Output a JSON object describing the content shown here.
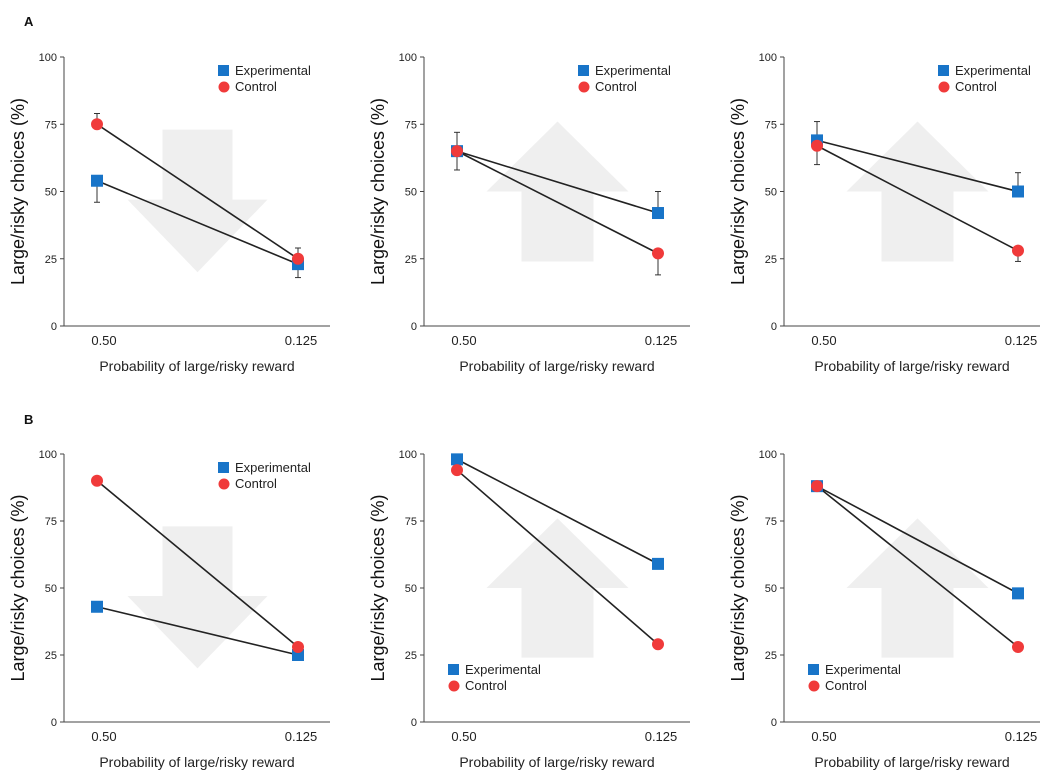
{
  "figure": {
    "rows": [
      {
        "label": "A"
      },
      {
        "label": "B"
      }
    ]
  },
  "colors": {
    "experimental": "#1874c8",
    "control": "#f03a3a",
    "line": "#222222",
    "arrow": "#efefef",
    "axis": "#444444"
  },
  "chart_data": [
    {
      "type": "line",
      "panel": "A-1",
      "arrow": "down",
      "legend_position": "top-right",
      "categories": [
        "0.50",
        "0.125"
      ],
      "xlabel": "Probability of large/risky reward",
      "ylabel": "Large/risky choices (%)",
      "ylim": [
        0,
        100
      ],
      "yticks": [
        "0",
        "25",
        "50",
        "75",
        "100"
      ],
      "series": [
        {
          "name": "Experimental",
          "marker": "square",
          "values": [
            54,
            23
          ],
          "err": [
            8,
            6
          ]
        },
        {
          "name": "Control",
          "marker": "circle",
          "values": [
            75,
            25
          ],
          "err": [
            4,
            7
          ]
        }
      ]
    },
    {
      "type": "line",
      "panel": "A-2",
      "arrow": "up",
      "legend_position": "top-right",
      "categories": [
        "0.50",
        "0.125"
      ],
      "xlabel": "Probability of large/risky reward",
      "ylabel": "Large/risky choices (%)",
      "ylim": [
        0,
        100
      ],
      "yticks": [
        "0",
        "25",
        "50",
        "75",
        "100"
      ],
      "series": [
        {
          "name": "Experimental",
          "marker": "square",
          "values": [
            65,
            42
          ],
          "err": [
            7,
            8
          ]
        },
        {
          "name": "Control",
          "marker": "circle",
          "values": [
            65,
            27
          ],
          "err": [
            7,
            8
          ]
        }
      ]
    },
    {
      "type": "line",
      "panel": "A-3",
      "arrow": "up",
      "legend_position": "top-right",
      "categories": [
        "0.50",
        "0.125"
      ],
      "xlabel": "Probability of large/risky reward",
      "ylabel": "Large/risky choices (%)",
      "ylim": [
        0,
        100
      ],
      "yticks": [
        "0",
        "25",
        "50",
        "75",
        "100"
      ],
      "series": [
        {
          "name": "Experimental",
          "marker": "square",
          "values": [
            69,
            50
          ],
          "err": [
            9,
            7
          ]
        },
        {
          "name": "Control",
          "marker": "circle",
          "values": [
            67,
            28
          ],
          "err": [
            9,
            4
          ]
        }
      ]
    },
    {
      "type": "line",
      "panel": "B-1",
      "arrow": "down",
      "legend_position": "top-right",
      "categories": [
        "0.50",
        "0.125"
      ],
      "xlabel": "Probability of large/risky reward",
      "ylabel": "Large/risky choices (%)",
      "ylim": [
        0,
        100
      ],
      "yticks": [
        "0",
        "25",
        "50",
        "75",
        "100"
      ],
      "series": [
        {
          "name": "Experimental",
          "marker": "square",
          "values": [
            43,
            25
          ],
          "err": [
            0,
            0
          ]
        },
        {
          "name": "Control",
          "marker": "circle",
          "values": [
            90,
            28
          ],
          "err": [
            0,
            0
          ]
        }
      ]
    },
    {
      "type": "line",
      "panel": "B-2",
      "arrow": "up",
      "legend_position": "bottom-left",
      "categories": [
        "0.50",
        "0.125"
      ],
      "xlabel": "Probability of large/risky reward",
      "ylabel": "Large/risky choices (%)",
      "ylim": [
        0,
        100
      ],
      "yticks": [
        "0",
        "25",
        "50",
        "75",
        "100"
      ],
      "series": [
        {
          "name": "Experimental",
          "marker": "square",
          "values": [
            98,
            59
          ],
          "err": [
            0,
            0
          ]
        },
        {
          "name": "Control",
          "marker": "circle",
          "values": [
            94,
            29
          ],
          "err": [
            0,
            0
          ]
        }
      ]
    },
    {
      "type": "line",
      "panel": "B-3",
      "arrow": "up",
      "legend_position": "bottom-left",
      "categories": [
        "0.50",
        "0.125"
      ],
      "xlabel": "Probability of large/risky reward",
      "ylabel": "Large/risky choices (%)",
      "ylim": [
        0,
        100
      ],
      "yticks": [
        "0",
        "25",
        "50",
        "75",
        "100"
      ],
      "series": [
        {
          "name": "Experimental",
          "marker": "square",
          "values": [
            88,
            48
          ],
          "err": [
            0,
            0
          ]
        },
        {
          "name": "Control",
          "marker": "circle",
          "values": [
            88,
            28
          ],
          "err": [
            0,
            0
          ]
        }
      ]
    }
  ]
}
